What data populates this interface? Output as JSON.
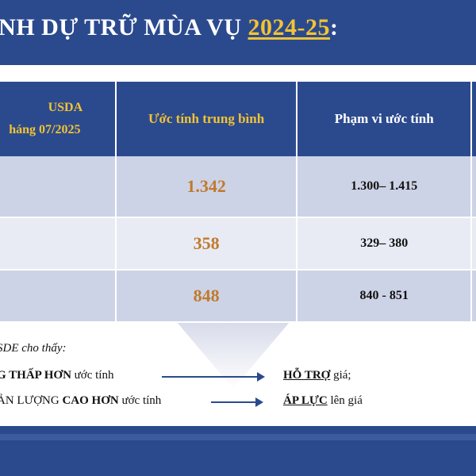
{
  "title": {
    "prefix": "ÌNH DỰ TRỮ MÙA VỤ ",
    "year": "2024-25",
    "colon": ":"
  },
  "table": {
    "headers": {
      "col0_line1": "USDA",
      "col0_line2": "háng 07/2025",
      "col1": "Ước tính trung bình",
      "col2": "Phạm vi ước tính"
    },
    "rows": [
      {
        "avg": "1.342",
        "range": "1.300– 1.415"
      },
      {
        "avg": "358",
        "range": "329– 380"
      },
      {
        "avg": "848",
        "range": "840 - 851"
      }
    ]
  },
  "notes": {
    "intro": "SDE cho thấy:",
    "line1": {
      "bold": "G THẤP HƠN",
      "rest": " ước tính",
      "result_key": "HỖ TRỢ",
      "result_rest": " giá;"
    },
    "line2": {
      "pre": "ẢN LƯỢNG ",
      "bold": "CAO HƠN",
      "rest": " ước tính",
      "result_key": "ÁP LỰC",
      "result_rest": " lên giá"
    }
  },
  "colors": {
    "band": "#2b4a8e",
    "header_accent": "#f3c332",
    "value_accent": "#c07a2c",
    "row_dark": "#cdd3e6",
    "row_light": "#e8ebf4"
  }
}
